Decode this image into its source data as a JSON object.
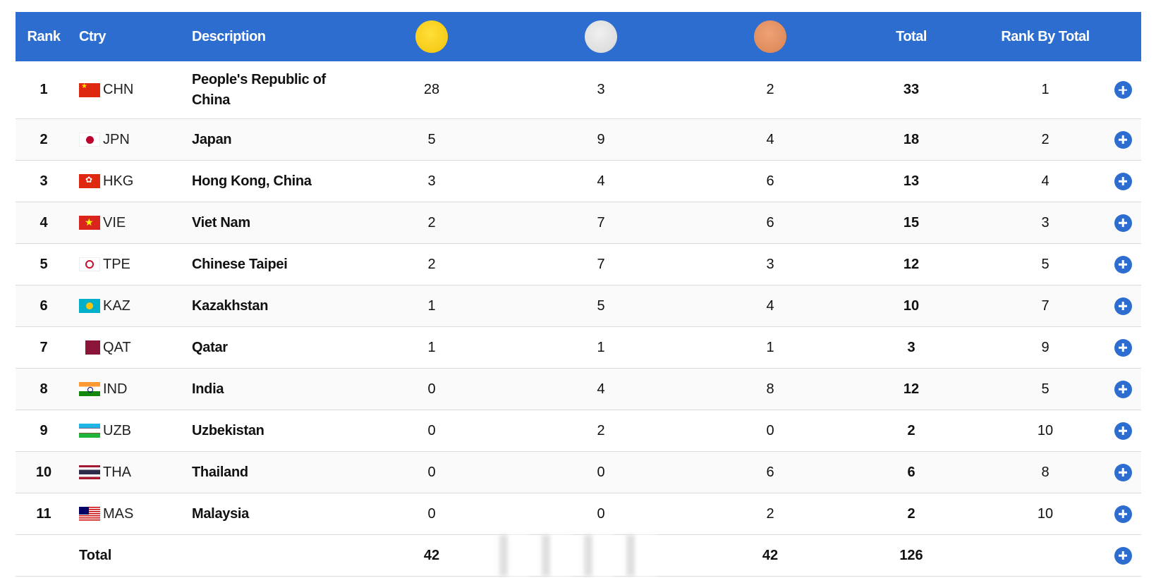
{
  "header": {
    "rank": "Rank",
    "ctry": "Ctry",
    "description": "Description",
    "gold_icon": "gold-medal-icon",
    "silver_icon": "silver-medal-icon",
    "bronze_icon": "bronze-medal-icon",
    "total": "Total",
    "rank_by_total": "Rank By Total"
  },
  "colors": {
    "header_bg": "#2d6dcf",
    "gold": "#f7cd15",
    "silver": "#dedede",
    "bronze": "#e38f5f",
    "plus_button": "#2d6dcf"
  },
  "rows": [
    {
      "rank": "1",
      "code": "CHN",
      "flag": "flag-chn-icon",
      "desc": "People's Republic of China",
      "gold": "28",
      "silver": "3",
      "bronze": "2",
      "total": "33",
      "rank_by_total": "1"
    },
    {
      "rank": "2",
      "code": "JPN",
      "flag": "flag-jpn-icon",
      "desc": "Japan",
      "gold": "5",
      "silver": "9",
      "bronze": "4",
      "total": "18",
      "rank_by_total": "2"
    },
    {
      "rank": "3",
      "code": "HKG",
      "flag": "flag-hkg-icon",
      "desc": "Hong Kong, China",
      "gold": "3",
      "silver": "4",
      "bronze": "6",
      "total": "13",
      "rank_by_total": "4"
    },
    {
      "rank": "4",
      "code": "VIE",
      "flag": "flag-vie-icon",
      "desc": "Viet Nam",
      "gold": "2",
      "silver": "7",
      "bronze": "6",
      "total": "15",
      "rank_by_total": "3"
    },
    {
      "rank": "5",
      "code": "TPE",
      "flag": "flag-tpe-icon",
      "desc": "Chinese Taipei",
      "gold": "2",
      "silver": "7",
      "bronze": "3",
      "total": "12",
      "rank_by_total": "5"
    },
    {
      "rank": "6",
      "code": "KAZ",
      "flag": "flag-kaz-icon",
      "desc": "Kazakhstan",
      "gold": "1",
      "silver": "5",
      "bronze": "4",
      "total": "10",
      "rank_by_total": "7"
    },
    {
      "rank": "7",
      "code": "QAT",
      "flag": "flag-qat-icon",
      "desc": "Qatar",
      "gold": "1",
      "silver": "1",
      "bronze": "1",
      "total": "3",
      "rank_by_total": "9"
    },
    {
      "rank": "8",
      "code": "IND",
      "flag": "flag-ind-icon",
      "desc": "India",
      "gold": "0",
      "silver": "4",
      "bronze": "8",
      "total": "12",
      "rank_by_total": "5"
    },
    {
      "rank": "9",
      "code": "UZB",
      "flag": "flag-uzb-icon",
      "desc": "Uzbekistan",
      "gold": "0",
      "silver": "2",
      "bronze": "0",
      "total": "2",
      "rank_by_total": "10"
    },
    {
      "rank": "10",
      "code": "THA",
      "flag": "flag-tha-icon",
      "desc": "Thailand",
      "gold": "0",
      "silver": "0",
      "bronze": "6",
      "total": "6",
      "rank_by_total": "8"
    },
    {
      "rank": "11",
      "code": "MAS",
      "flag": "flag-mas-icon",
      "desc": "Malaysia",
      "gold": "0",
      "silver": "0",
      "bronze": "2",
      "total": "2",
      "rank_by_total": "10"
    }
  ],
  "totals": {
    "label": "Total",
    "gold": "42",
    "bronze": "42",
    "total": "126"
  }
}
